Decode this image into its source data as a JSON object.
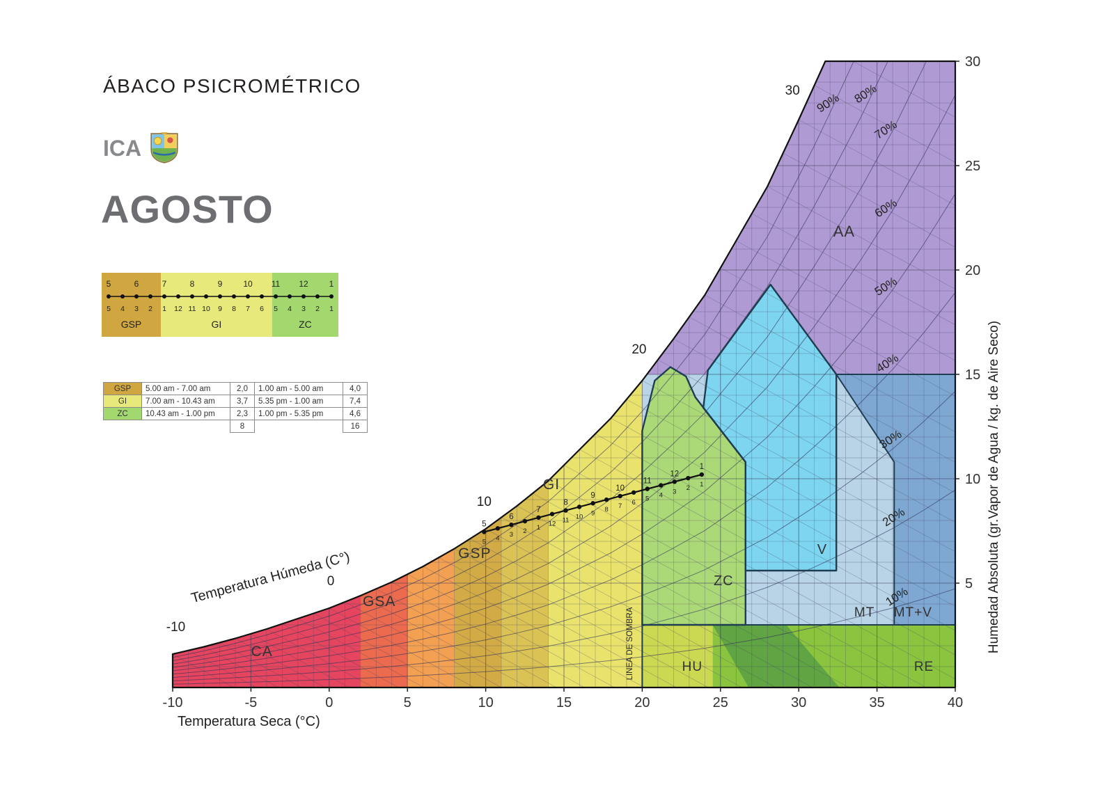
{
  "header": {
    "title": "ÁBACO PSICROMÉTRICO",
    "station": "ICA",
    "month": "AGOSTO"
  },
  "legend_bar": {
    "top_numbers": [
      "5",
      "6",
      "7",
      "8",
      "9",
      "10",
      "11",
      "12",
      "1"
    ],
    "bottom_numbers": [
      "5",
      "4",
      "3",
      "2",
      "1",
      "12",
      "11",
      "10",
      "9",
      "8",
      "7",
      "6",
      "5",
      "4",
      "3",
      "2",
      "1"
    ],
    "segments": [
      {
        "label": "GSP",
        "color": "#cfa63f",
        "f0": 0,
        "f1": 0.25
      },
      {
        "label": "GI",
        "color": "#e7e97b",
        "f0": 0.25,
        "f1": 0.72
      },
      {
        "label": "ZC",
        "color": "#a2d86e",
        "f0": 0.72,
        "f1": 1
      }
    ]
  },
  "schedule_table": {
    "rows": [
      {
        "zone": "GSP",
        "color": "#cfa63f",
        "period1": "5.00 am - 7.00 am",
        "hours1": "2,0",
        "period2": "1.00 am - 5.00 am",
        "hours2": "4,0"
      },
      {
        "zone": "GI",
        "color": "#e7e97b",
        "period1": "7.00 am - 10.43 am",
        "hours1": "3,7",
        "period2": "5.35 pm - 1.00 am",
        "hours2": "7,4"
      },
      {
        "zone": "ZC",
        "color": "#a2d86e",
        "period1": "10.43 am - 1.00 pm",
        "hours1": "2,3",
        "period2": "1.00 pm - 5.35 pm",
        "hours2": "4,6"
      }
    ],
    "totals": {
      "hours1": "8",
      "hours2": "16"
    }
  },
  "chart_data": {
    "type": "psychrometric",
    "xlabel": "Temperatura  Seca (°C)",
    "ylabel": "Humedad Absoluta (gr.Vapor de Agua / kg.  de Aire Seco)",
    "wetbulb_label": "Temperatura Húmeda (C°)",
    "shadow_line_label": "LINEA DE SOMBRA",
    "x_range": [
      -10,
      40
    ],
    "y_range": [
      0,
      30
    ],
    "x_ticks": [
      -10,
      -5,
      0,
      5,
      10,
      15,
      20,
      25,
      30,
      35,
      40
    ],
    "y_ticks": [
      5,
      10,
      15,
      20,
      25,
      30
    ],
    "sat_top_t": 31.7,
    "wetbulb_slope": 0.41,
    "saturation_curve": [
      [
        -10,
        1.6
      ],
      [
        -8,
        1.95
      ],
      [
        -6,
        2.35
      ],
      [
        -4,
        2.8
      ],
      [
        -2,
        3.3
      ],
      [
        0,
        3.8
      ],
      [
        2,
        4.4
      ],
      [
        4,
        5.05
      ],
      [
        6,
        5.8
      ],
      [
        8,
        6.65
      ],
      [
        10,
        7.6
      ],
      [
        12,
        8.7
      ],
      [
        14,
        9.9
      ],
      [
        16,
        11.4
      ],
      [
        18,
        12.9
      ],
      [
        20,
        14.7
      ],
      [
        22,
        16.7
      ],
      [
        24,
        18.8
      ],
      [
        26,
        21.4
      ],
      [
        28,
        24.0
      ],
      [
        30,
        27.2
      ],
      [
        31.7,
        30.0
      ],
      [
        32,
        30.6
      ],
      [
        34,
        34.2
      ],
      [
        36,
        38.1
      ],
      [
        38,
        42.5
      ],
      [
        40,
        47.3
      ]
    ],
    "rh_values": [
      0.9,
      0.8,
      0.7,
      0.6,
      0.5,
      0.4,
      0.3,
      0.2,
      0.1
    ],
    "rh_label_pos": [
      {
        "text": "90%",
        "t": 32.0
      },
      {
        "text": "80%",
        "t": 34.4
      },
      {
        "text": "70%",
        "t": 35.7
      },
      {
        "text": "60%",
        "t": 35.7
      },
      {
        "text": "50%",
        "t": 35.7
      },
      {
        "text": "40%",
        "t": 35.8
      },
      {
        "text": "30%",
        "t": 36.0
      },
      {
        "text": "20%",
        "t": 36.2
      },
      {
        "text": "10%",
        "t": 36.4
      }
    ],
    "wetbulb_axis_labels": [
      {
        "text": "-10",
        "t": -9.8,
        "w": 2.7
      },
      {
        "text": "0",
        "t": 0.1,
        "w": 4.9
      },
      {
        "text": "10",
        "t": 9.9,
        "w": 8.7
      },
      {
        "text": "20",
        "t": 19.8,
        "w": 16.0
      },
      {
        "text": "30",
        "t": 29.6,
        "w": 28.4
      }
    ],
    "bands": [
      {
        "name": "CA",
        "t0": -10,
        "t1": 2,
        "color": "#e5455e"
      },
      {
        "name": "GSA-low",
        "t0": 2,
        "t1": 5,
        "color": "#ec6a4d"
      },
      {
        "name": "GSA-high",
        "t0": 5,
        "t1": 8,
        "color": "#f3a052"
      },
      {
        "name": "GSP-low",
        "t0": 8,
        "t1": 11,
        "color": "#d2aa46"
      },
      {
        "name": "GSP-high",
        "t0": 11,
        "t1": 14,
        "color": "#dbc254"
      },
      {
        "name": "GI",
        "t0": 14,
        "t1": 20,
        "color": "#e9e36e"
      }
    ],
    "zones": [
      {
        "name": "HU",
        "fill": "#cbd851",
        "points": [
          [
            20,
            0
          ],
          [
            20,
            3
          ],
          [
            24.5,
            3
          ],
          [
            24.5,
            0
          ]
        ]
      },
      {
        "name": "RE",
        "fill": "#8bc53f",
        "points": [
          [
            24.5,
            0
          ],
          [
            24.5,
            3
          ],
          [
            40,
            3
          ],
          [
            40,
            0
          ]
        ]
      },
      {
        "name": "HU-RE-shade",
        "fill": "#5ba044",
        "opacity": 0.9,
        "points": [
          [
            24.5,
            3
          ],
          [
            29.2,
            3
          ],
          [
            32.6,
            0
          ],
          [
            26.8,
            0
          ]
        ]
      },
      {
        "name": "MT",
        "fill": "#b9d4e7",
        "points": [
          [
            20,
            3
          ],
          [
            20,
            15
          ],
          [
            40,
            15
          ],
          [
            40,
            3
          ]
        ]
      },
      {
        "name": "MT+V",
        "fill": "#7ea8d2",
        "points": [
          [
            32.4,
            15
          ],
          [
            36.1,
            10.8
          ],
          [
            36.1,
            3
          ],
          [
            40,
            3
          ],
          [
            40,
            15
          ]
        ]
      },
      {
        "name": "AA",
        "fill": "#b09ad4",
        "sat_top": true,
        "t0": 20.3,
        "w0": 15
      },
      {
        "name": "V",
        "fill": "#7ed5ef",
        "outline": true,
        "points": [
          [
            26.6,
            5.6
          ],
          [
            26.6,
            10.8
          ],
          [
            23.9,
            13.4
          ],
          [
            24.2,
            15.2
          ],
          [
            28.2,
            19.3
          ],
          [
            32.4,
            15.0
          ],
          [
            32.4,
            5.6
          ]
        ]
      },
      {
        "name": "ZC",
        "fill": "#acd977",
        "outline": true,
        "points": [
          [
            20,
            3
          ],
          [
            20,
            12.3
          ],
          [
            20.8,
            14.7
          ],
          [
            21.8,
            15.35
          ],
          [
            22.8,
            14.9
          ],
          [
            23.4,
            13.9
          ],
          [
            26.6,
            10.8
          ],
          [
            26.6,
            3
          ]
        ]
      }
    ],
    "boundaries": [
      [
        [
          32.4,
          15
        ],
        [
          40,
          15
        ]
      ],
      [
        [
          32.4,
          15
        ],
        [
          36.1,
          10.8
        ],
        [
          36.1,
          3
        ]
      ],
      [
        [
          20,
          3
        ],
        [
          40,
          3
        ]
      ],
      [
        [
          20,
          0
        ],
        [
          20,
          3
        ]
      ]
    ],
    "zone_labels": [
      {
        "text": "CA",
        "t": -4.3,
        "w": 1.5,
        "size": 21
      },
      {
        "text": "GSA",
        "t": 3.2,
        "w": 3.9,
        "size": 21
      },
      {
        "text": "GSP",
        "t": 9.3,
        "w": 6.2,
        "size": 21
      },
      {
        "text": "GI",
        "t": 14.2,
        "w": 9.5,
        "size": 21
      },
      {
        "text": "ZC",
        "t": 25.2,
        "w": 4.9,
        "size": 20
      },
      {
        "text": "V",
        "t": 31.5,
        "w": 6.4,
        "size": 20
      },
      {
        "text": "AA",
        "t": 32.9,
        "w": 21.6,
        "size": 22
      },
      {
        "text": "MT",
        "t": 34.2,
        "w": 3.4,
        "size": 19
      },
      {
        "text": "MT+V",
        "t": 37.3,
        "w": 3.4,
        "size": 19
      },
      {
        "text": "HU",
        "t": 23.2,
        "w": 0.8,
        "size": 19
      },
      {
        "text": "RE",
        "t": 38.0,
        "w": 0.8,
        "size": 19
      }
    ],
    "trace": {
      "start": [
        9.9,
        7.45
      ],
      "end": [
        23.8,
        10.2
      ],
      "top_labels": [
        "5",
        "6",
        "7",
        "8",
        "9",
        "10",
        "11",
        "12",
        "1"
      ],
      "bottom_labels": [
        "5",
        "4",
        "3",
        "2",
        "1",
        "12",
        "11",
        "10",
        "9",
        "8",
        "7",
        "6",
        "5",
        "4",
        "3",
        "2",
        "1"
      ]
    },
    "style": {
      "grid_color": "rgba(70,70,100,0.38)",
      "grid_major_color": "rgba(60,60,90,0.55)",
      "rh_color": "rgba(50,50,90,0.6)",
      "outline_color": "#1f3d52",
      "curve_color": "#111111",
      "axis_text_color": "#333333"
    }
  }
}
